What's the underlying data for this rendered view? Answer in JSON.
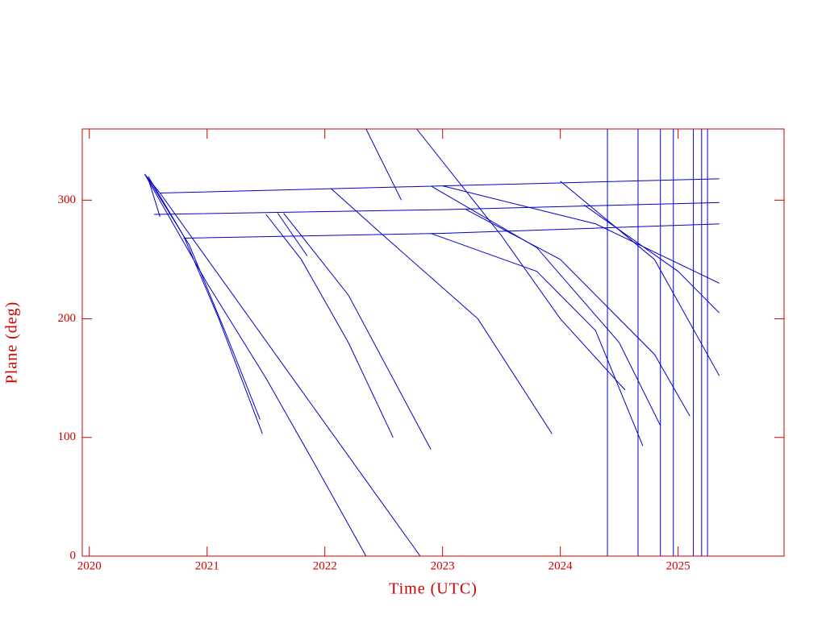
{
  "chart_data": {
    "type": "line",
    "x_label": "Time (UTC)",
    "y_label": "Plane (deg)",
    "color": "#0000cc",
    "axis_color": "#cc0000",
    "xlim": [
      2019.94,
      2025.9
    ],
    "ylim": [
      0,
      360
    ],
    "xticks": [
      2020,
      2021,
      2022,
      2023,
      2024,
      2025
    ],
    "yticks": [
      0,
      100,
      200,
      300
    ],
    "series": [
      {
        "x": [
          2020.47,
          2020.6,
          2022.81
        ],
        "values": [
          322,
          306,
          0
        ]
      },
      {
        "x": [
          2020.47,
          2021.0,
          2021.5,
          2021.9,
          2022.35
        ],
        "values": [
          322,
          230,
          150,
          80,
          0
        ]
      },
      {
        "x": [
          2020.6,
          2023.0,
          2025.35
        ],
        "values": [
          306,
          312,
          318
        ]
      },
      {
        "x": [
          2020.55,
          2023.0,
          2025.35
        ],
        "values": [
          288,
          292,
          298
        ]
      },
      {
        "x": [
          2020.8,
          2023.0,
          2025.35
        ],
        "values": [
          268,
          272,
          280
        ]
      },
      {
        "x": [
          2020.5,
          2020.8,
          2021.1,
          2021.47
        ],
        "values": [
          320,
          270,
          200,
          103
        ]
      },
      {
        "x": [
          2020.5,
          2020.85,
          2021.15,
          2021.45
        ],
        "values": [
          318,
          262,
          190,
          115
        ]
      },
      {
        "x": [
          2020.5,
          2020.6
        ],
        "values": [
          318,
          286
        ]
      },
      {
        "x": [
          2021.5,
          2021.8,
          2022.2,
          2022.58
        ],
        "values": [
          288,
          250,
          180,
          100
        ]
      },
      {
        "x": [
          2021.6,
          2021.85
        ],
        "values": [
          289,
          253
        ]
      },
      {
        "x": [
          2021.65,
          2022.2,
          2022.9
        ],
        "values": [
          289,
          220,
          90
        ]
      },
      {
        "x": [
          2022.05,
          2022.5,
          2023.3,
          2023.93
        ],
        "values": [
          310,
          270,
          200,
          103
        ]
      },
      {
        "x": [
          2022.35,
          2022.65
        ],
        "values": [
          360,
          300
        ]
      },
      {
        "x": [
          2022.78,
          2023.5,
          2024.0,
          2024.55
        ],
        "values": [
          360,
          270,
          200,
          140
        ]
      },
      {
        "x": [
          2022.9,
          2023.8,
          2024.3,
          2024.7
        ],
        "values": [
          272,
          240,
          190,
          93
        ]
      },
      {
        "x": [
          2022.9,
          2023.8,
          2024.5,
          2024.85
        ],
        "values": [
          312,
          260,
          180,
          110
        ]
      },
      {
        "x": [
          2023.2,
          2024.0,
          2024.8,
          2025.1
        ],
        "values": [
          292,
          250,
          170,
          118
        ]
      },
      {
        "x": [
          2024.0,
          2024.8,
          2025.35
        ],
        "values": [
          316,
          250,
          152
        ]
      },
      {
        "x": [
          2024.2,
          2025.0,
          2025.35
        ],
        "values": [
          296,
          240,
          205
        ]
      },
      {
        "x": [
          2023.0,
          2024.3,
          2025.35
        ],
        "values": [
          312,
          280,
          230
        ]
      },
      {
        "x": [
          2024.4,
          2024.4
        ],
        "values": [
          0,
          360
        ]
      },
      {
        "x": [
          2024.66,
          2024.66
        ],
        "values": [
          0,
          360
        ]
      },
      {
        "x": [
          2024.85,
          2024.85
        ],
        "values": [
          0,
          360
        ]
      },
      {
        "x": [
          2024.96,
          2024.96
        ],
        "values": [
          0,
          360
        ]
      },
      {
        "x": [
          2025.13,
          2025.13
        ],
        "values": [
          0,
          360
        ]
      },
      {
        "x": [
          2025.2,
          2025.2
        ],
        "values": [
          0,
          360
        ]
      },
      {
        "x": [
          2025.25,
          2025.25
        ],
        "values": [
          0,
          360
        ]
      }
    ]
  }
}
